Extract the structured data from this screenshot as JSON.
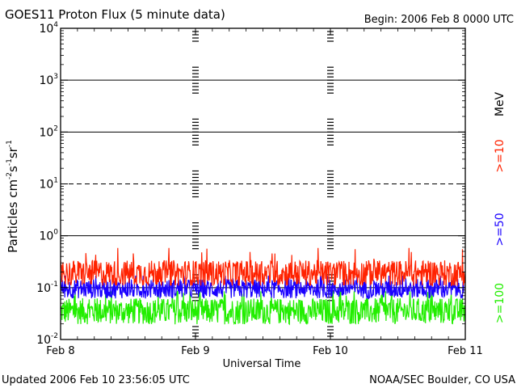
{
  "header": {
    "title": "GOES11 Proton Flux (5 minute data)",
    "begin": "Begin: 2006 Feb 8 0000 UTC"
  },
  "footer": {
    "updated": "Updated 2006 Feb 10 23:56:05 UTC",
    "credit": "NOAA/SEC Boulder, CO USA"
  },
  "chart_data": {
    "type": "line",
    "title": "GOES11 Proton Flux (5 minute data)",
    "xlabel": "Universal Time",
    "ylabel_base": "Particles cm",
    "ylabel_exp1": "-2",
    "ylabel_mid1": "s",
    "ylabel_exp2": "-1",
    "ylabel_mid2": "sr",
    "ylabel_exp3": "-1",
    "y_scale": "log",
    "ylim": [
      0.01,
      10000
    ],
    "xlim_days": [
      0,
      3
    ],
    "x_ticks": [
      {
        "day": 0,
        "label": "Feb 8"
      },
      {
        "day": 1,
        "label": "Feb 9"
      },
      {
        "day": 2,
        "label": "Feb 10"
      },
      {
        "day": 3,
        "label": "Feb 11"
      }
    ],
    "y_ticks": [
      {
        "exp": 4,
        "label": "10",
        "sup": "4"
      },
      {
        "exp": 3,
        "label": "10",
        "sup": "3"
      },
      {
        "exp": 2,
        "label": "10",
        "sup": "2"
      },
      {
        "exp": 1,
        "label": "10",
        "sup": "1"
      },
      {
        "exp": 0,
        "label": "10",
        "sup": "0"
      },
      {
        "exp": -1,
        "label": "10",
        "sup": "-1"
      },
      {
        "exp": -2,
        "label": "10",
        "sup": "-2"
      }
    ],
    "reference_lines": [
      {
        "exp": 3,
        "style": "solid"
      },
      {
        "exp": 2,
        "style": "solid"
      },
      {
        "exp": 1,
        "style": "dashed"
      },
      {
        "exp": 0,
        "style": "solid"
      },
      {
        "exp": -1,
        "style": "solid"
      }
    ],
    "series_unit": "MeV",
    "series": [
      {
        "name": ">=10",
        "color": "#ff2200",
        "median_flux": 0.19,
        "min_flux": 0.11,
        "max_flux": 0.58
      },
      {
        "name": ">=50",
        "color": "#1a00ff",
        "median_flux": 0.095,
        "min_flux": 0.05,
        "max_flux": 0.17
      },
      {
        "name": ">=100",
        "color": "#22ee00",
        "median_flux": 0.035,
        "min_flux": 0.016,
        "max_flux": 0.085
      }
    ]
  }
}
